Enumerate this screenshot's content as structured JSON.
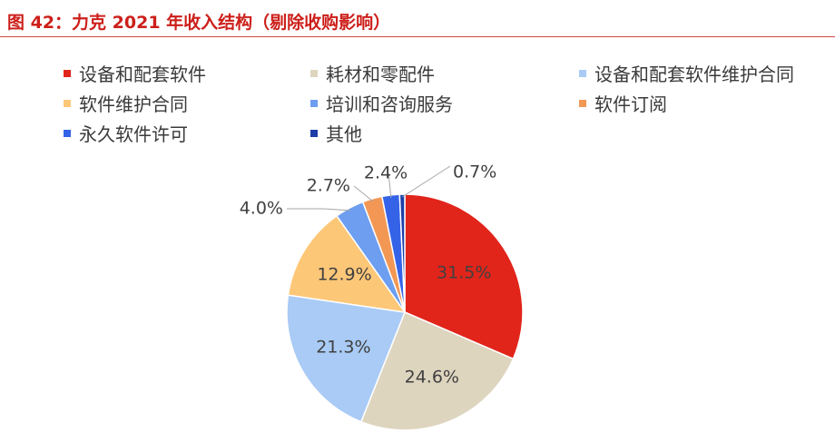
{
  "figure": {
    "title": "图 42：力克 2021 年收入结构（剔除收购影响）"
  },
  "chart_data": {
    "type": "pie",
    "title": "图 42：力克 2021 年收入结构（剔除收购影响）",
    "legend_placement": "top",
    "series": [
      {
        "name": "设备和配套软件",
        "value": 31.5,
        "label": "31.5%",
        "color": "#e1251b"
      },
      {
        "name": "耗材和零配件",
        "value": 24.6,
        "label": "24.6%",
        "color": "#ded5bf"
      },
      {
        "name": "设备和配套软件维护合同",
        "value": 21.3,
        "label": "21.3%",
        "color": "#a9cbf5"
      },
      {
        "name": "软件维护合同",
        "value": 12.9,
        "label": "12.9%",
        "color": "#fdc778"
      },
      {
        "name": "培训和咨询服务",
        "value": 4.0,
        "label": "4.0%",
        "color": "#6d9ef0"
      },
      {
        "name": "软件订阅",
        "value": 2.7,
        "label": "2.7%",
        "color": "#f39755"
      },
      {
        "name": "永久软件许可",
        "value": 2.4,
        "label": "2.4%",
        "color": "#3563e8"
      },
      {
        "name": "其他",
        "value": 0.7,
        "label": "0.7%",
        "color": "#1c3ea8"
      }
    ]
  }
}
